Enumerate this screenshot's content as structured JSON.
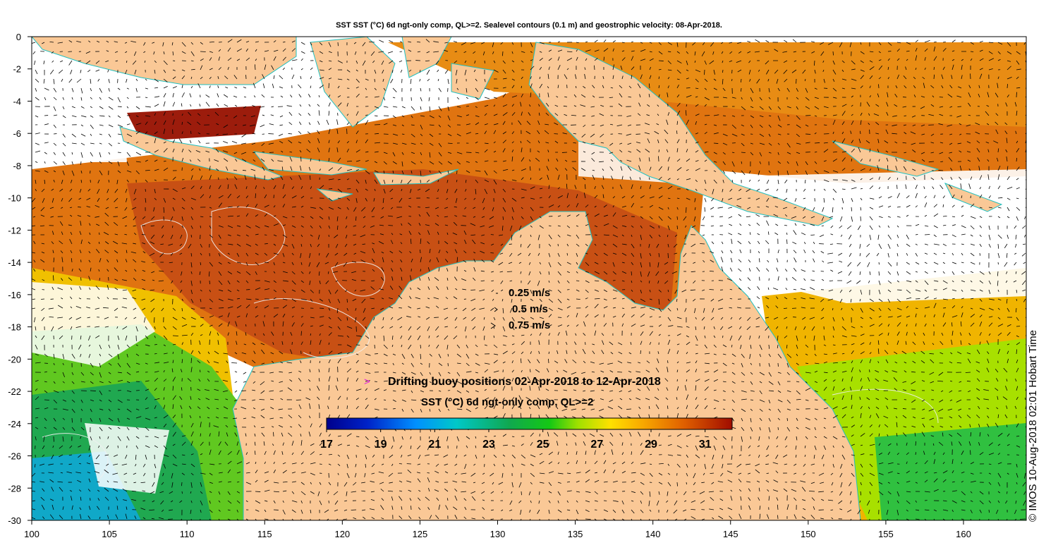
{
  "title": "SST SST (°C) 6d ngt-only comp, QL>=2. Sealevel contours (0.1 m) and geostrophic velocity: 08-Apr-2018.",
  "axes": {
    "x_ticks": [
      "100",
      "105",
      "110",
      "115",
      "120",
      "125",
      "130",
      "135",
      "140",
      "145",
      "150",
      "155",
      "160"
    ],
    "y_ticks": [
      "0",
      "-2",
      "-4",
      "-6",
      "-8",
      "-10",
      "-12",
      "-14",
      "-16",
      "-18",
      "-20",
      "-22",
      "-24",
      "-26",
      "-28",
      "-30"
    ]
  },
  "velocity_scale": [
    {
      "label": "0.25 m/s",
      "speed": 0.25
    },
    {
      "label": "0.5 m/s",
      "speed": 0.5
    },
    {
      "label": "0.75 m/s",
      "speed": 0.75
    }
  ],
  "buoy_marker": ">",
  "buoy_label": "Drifting buoy positions 02-Apr-2018 to 12-Apr-2018",
  "colorbar": {
    "title": "SST (°C) 6d ngt-only comp, QL>=2",
    "ticks": [
      "17",
      "19",
      "21",
      "23",
      "25",
      "27",
      "29",
      "31"
    ],
    "range": [
      17,
      32
    ]
  },
  "credit": "© IMOS 10-Aug-2018 02:01 Hobart Time",
  "colors": {
    "land": "#fac896",
    "coast_line": "#20c0c0",
    "buoy_marker": "#e020e0",
    "contour": "#f0f0f0"
  }
}
